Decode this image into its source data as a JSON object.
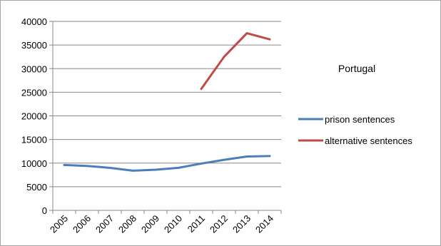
{
  "chart_data": {
    "type": "line",
    "title": "Portugal",
    "categories": [
      "2005",
      "2006",
      "2007",
      "2008",
      "2009",
      "2010",
      "2011",
      "2012",
      "2013",
      "2014"
    ],
    "y_ticks": [
      "0",
      "5000",
      "10000",
      "15000",
      "20000",
      "25000",
      "30000",
      "35000",
      "40000"
    ],
    "ylim": [
      0,
      40000
    ],
    "grid": true,
    "legend_position": "right",
    "series": [
      {
        "name": "prison sentences",
        "color": "#4a7ebb",
        "values": [
          9600,
          9400,
          9000,
          8400,
          8600,
          9000,
          9900,
          10700,
          11400,
          11500
        ]
      },
      {
        "name": "alternative sentences",
        "color": "#be4b48",
        "values": [
          null,
          null,
          null,
          null,
          null,
          null,
          25700,
          32500,
          37500,
          36200
        ]
      }
    ]
  }
}
